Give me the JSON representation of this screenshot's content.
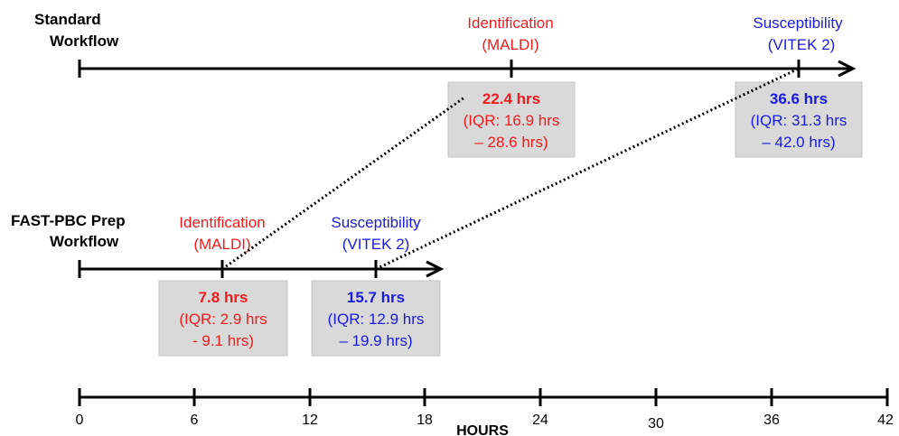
{
  "colors": {
    "red": "#ee1c1c",
    "blue": "#1a1adc",
    "box_fill": "#d9d9d9",
    "line": "#000000"
  },
  "standard": {
    "label_line1": "Standard",
    "label_line2": "Workflow",
    "identification": {
      "title_line1": "Identification",
      "title_line2": "(MALDI)",
      "hours": 22.4,
      "value": "22.4 hrs",
      "iqr_line1": "(IQR: 16.9 hrs",
      "iqr_line2": "– 28.6 hrs)"
    },
    "susceptibility": {
      "title_line1": "Susceptibility",
      "title_line2": "(VITEK 2)",
      "hours": 36.6,
      "value": "36.6 hrs",
      "iqr_line1": "(IQR: 31.3 hrs",
      "iqr_line2": "– 42.0 hrs)"
    }
  },
  "fast": {
    "label_line1": "FAST-PBC Prep",
    "label_line2": "Workflow",
    "identification": {
      "title_line1": "Identification",
      "title_line2": "(MALDI)",
      "hours": 7.8,
      "value": "7.8 hrs",
      "iqr_line1": "(IQR: 2.9 hrs",
      "iqr_line2": "- 9.1 hrs)"
    },
    "susceptibility": {
      "title_line1": "Susceptibility",
      "title_line2": "(VITEK 2)",
      "hours": 15.7,
      "value": "15.7 hrs",
      "iqr_line1": "(IQR: 12.9 hrs",
      "iqr_line2": "– 19.9 hrs)"
    }
  },
  "axis": {
    "title": "HOURS",
    "ticks": [
      "0",
      "6",
      "12",
      "18",
      "24",
      "30",
      "36",
      "42"
    ]
  }
}
